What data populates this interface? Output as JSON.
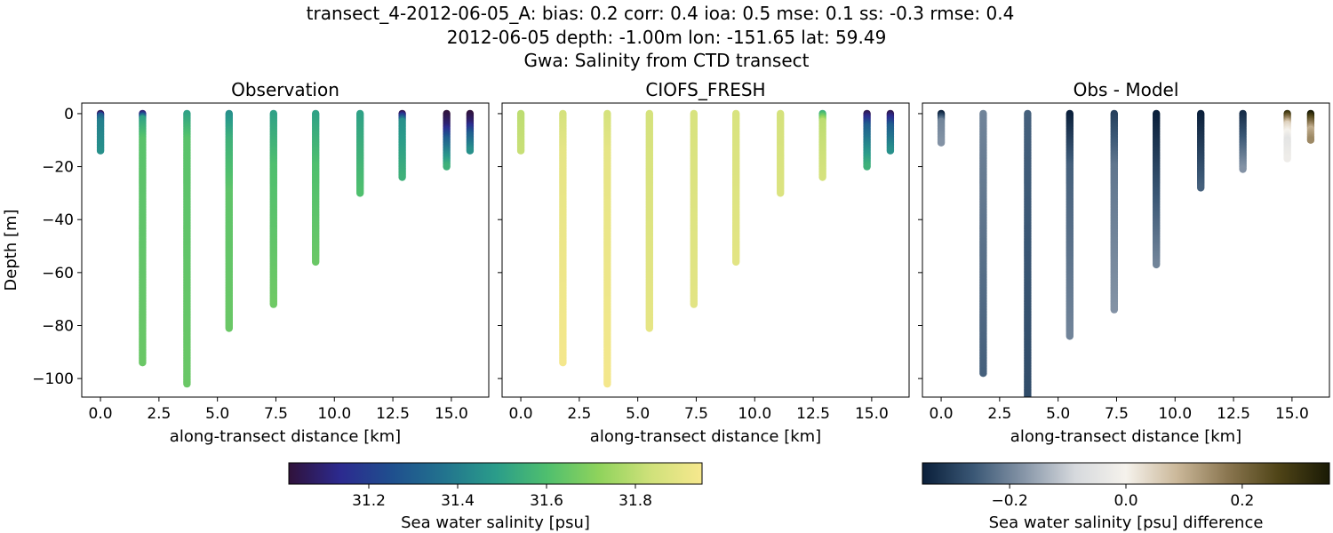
{
  "figure": {
    "title_lines": [
      "transect_4-2012-06-05_A: bias: 0.2  corr: 0.4  ioa: 0.5  mse: 0.1  ss: -0.3  rmse: 0.4",
      "2012-06-05 depth: -1.00m lon: -151.65 lat: 59.49",
      "Gwa: Salinity from CTD transect"
    ]
  },
  "chart_data": [
    {
      "type": "scatter",
      "panel": "observation",
      "title": "Observation",
      "xlabel": "along-transect distance [km]",
      "ylabel": "Depth [m]",
      "xlim": [
        -0.8,
        16.6
      ],
      "ylim": [
        -107,
        4
      ],
      "xticks": [
        "0.0",
        "2.5",
        "5.0",
        "7.5",
        "10.0",
        "12.5",
        "15.0"
      ],
      "yticks": [
        "0",
        "−20",
        "−40",
        "−60",
        "−80",
        "−100"
      ],
      "colorbar": "salinity",
      "stations": [
        {
          "x": 0.0,
          "min_depth": -14,
          "values": [
            [
              0,
              31.05
            ],
            [
              -1,
              31.3
            ],
            [
              -3,
              31.4
            ],
            [
              -14,
              31.45
            ]
          ]
        },
        {
          "x": 1.8,
          "min_depth": -94,
          "values": [
            [
              0,
              31.1
            ],
            [
              -2,
              31.5
            ],
            [
              -10,
              31.62
            ],
            [
              -94,
              31.65
            ]
          ]
        },
        {
          "x": 3.7,
          "min_depth": -102,
          "values": [
            [
              0,
              31.5
            ],
            [
              -10,
              31.62
            ],
            [
              -102,
              31.65
            ]
          ]
        },
        {
          "x": 5.5,
          "min_depth": -81,
          "values": [
            [
              0,
              31.45
            ],
            [
              -10,
              31.55
            ],
            [
              -30,
              31.63
            ],
            [
              -81,
              31.65
            ]
          ]
        },
        {
          "x": 7.4,
          "min_depth": -72,
          "values": [
            [
              0,
              31.5
            ],
            [
              -20,
              31.6
            ],
            [
              -72,
              31.66
            ]
          ]
        },
        {
          "x": 9.2,
          "min_depth": -56,
          "values": [
            [
              0,
              31.5
            ],
            [
              -20,
              31.6
            ],
            [
              -56,
              31.65
            ]
          ]
        },
        {
          "x": 11.1,
          "min_depth": -30,
          "values": [
            [
              0,
              31.5
            ],
            [
              -30,
              31.6
            ]
          ]
        },
        {
          "x": 12.9,
          "min_depth": -24,
          "values": [
            [
              0,
              31.05
            ],
            [
              -3,
              31.45
            ],
            [
              -24,
              31.55
            ]
          ]
        },
        {
          "x": 14.8,
          "min_depth": -20,
          "values": [
            [
              0,
              31.02
            ],
            [
              -5,
              31.1
            ],
            [
              -10,
              31.3
            ],
            [
              -20,
              31.55
            ]
          ]
        },
        {
          "x": 15.8,
          "min_depth": -14,
          "values": [
            [
              0,
              31.02
            ],
            [
              -4,
              31.1
            ],
            [
              -8,
              31.3
            ],
            [
              -14,
              31.45
            ]
          ]
        }
      ]
    },
    {
      "type": "scatter",
      "panel": "model",
      "title": "CIOFS_FRESH",
      "xlabel": "along-transect distance [km]",
      "ylabel": "",
      "xlim": [
        -0.8,
        16.6
      ],
      "ylim": [
        -107,
        4
      ],
      "xticks": [
        "0.0",
        "2.5",
        "5.0",
        "7.5",
        "10.0",
        "12.5",
        "15.0"
      ],
      "colorbar": "salinity",
      "stations": [
        {
          "x": 0.0,
          "min_depth": -14,
          "values": [
            [
              0,
              31.8
            ],
            [
              -14,
              31.82
            ]
          ]
        },
        {
          "x": 1.8,
          "min_depth": -94,
          "values": [
            [
              0,
              31.85
            ],
            [
              -15,
              31.9
            ],
            [
              -94,
              31.94
            ]
          ]
        },
        {
          "x": 3.7,
          "min_depth": -102,
          "values": [
            [
              0,
              31.85
            ],
            [
              -15,
              31.9
            ],
            [
              -102,
              31.94
            ]
          ]
        },
        {
          "x": 5.5,
          "min_depth": -81,
          "values": [
            [
              0,
              31.85
            ],
            [
              -81,
              31.9
            ]
          ]
        },
        {
          "x": 7.4,
          "min_depth": -72,
          "values": [
            [
              0,
              31.86
            ],
            [
              -72,
              31.89
            ]
          ]
        },
        {
          "x": 9.2,
          "min_depth": -56,
          "values": [
            [
              0,
              31.86
            ],
            [
              -56,
              31.89
            ]
          ]
        },
        {
          "x": 11.1,
          "min_depth": -30,
          "values": [
            [
              0,
              31.85
            ],
            [
              -30,
              31.87
            ]
          ]
        },
        {
          "x": 12.9,
          "min_depth": -24,
          "values": [
            [
              0,
              31.55
            ],
            [
              -3,
              31.8
            ],
            [
              -24,
              31.85
            ]
          ]
        },
        {
          "x": 14.8,
          "min_depth": -20,
          "values": [
            [
              0,
              31.05
            ],
            [
              -5,
              31.3
            ],
            [
              -20,
              31.55
            ]
          ]
        },
        {
          "x": 15.8,
          "min_depth": -14,
          "values": [
            [
              0,
              31.05
            ],
            [
              -5,
              31.3
            ],
            [
              -14,
              31.45
            ]
          ]
        }
      ]
    },
    {
      "type": "scatter",
      "panel": "difference",
      "title": "Obs - Model",
      "xlabel": "along-transect distance [km]",
      "ylabel": "",
      "xlim": [
        -0.8,
        16.6
      ],
      "ylim": [
        -107,
        4
      ],
      "xticks": [
        "0.0",
        "2.5",
        "5.0",
        "7.5",
        "10.0",
        "12.5",
        "15.0"
      ],
      "colorbar": "difference",
      "stations": [
        {
          "x": 0.0,
          "min_depth": -11,
          "values": [
            [
              0,
              -0.35
            ],
            [
              -3,
              -0.2
            ],
            [
              -11,
              -0.18
            ]
          ]
        },
        {
          "x": 1.8,
          "min_depth": -98,
          "values": [
            [
              0,
              -0.2
            ],
            [
              -98,
              -0.25
            ]
          ]
        },
        {
          "x": 3.7,
          "min_depth": -107,
          "values": [
            [
              0,
              -0.25
            ],
            [
              -107,
              -0.28
            ]
          ]
        },
        {
          "x": 5.5,
          "min_depth": -84,
          "values": [
            [
              0,
              -0.35
            ],
            [
              -20,
              -0.25
            ],
            [
              -84,
              -0.2
            ]
          ]
        },
        {
          "x": 7.4,
          "min_depth": -74,
          "values": [
            [
              0,
              -0.3
            ],
            [
              -20,
              -0.22
            ],
            [
              -74,
              -0.18
            ]
          ]
        },
        {
          "x": 9.2,
          "min_depth": -57,
          "values": [
            [
              0,
              -0.35
            ],
            [
              -25,
              -0.28
            ],
            [
              -57,
              -0.2
            ]
          ]
        },
        {
          "x": 11.1,
          "min_depth": -28,
          "values": [
            [
              0,
              -0.35
            ],
            [
              -28,
              -0.25
            ]
          ]
        },
        {
          "x": 12.9,
          "min_depth": -21,
          "values": [
            [
              0,
              -0.33
            ],
            [
              -21,
              -0.18
            ]
          ]
        },
        {
          "x": 14.8,
          "min_depth": -17,
          "values": [
            [
              0,
              0.3
            ],
            [
              -4,
              0.05
            ],
            [
              -10,
              -0.05
            ],
            [
              -17,
              -0.02
            ]
          ]
        },
        {
          "x": 15.8,
          "min_depth": -10,
          "values": [
            [
              0,
              0.35
            ],
            [
              -2,
              0.25
            ],
            [
              -6,
              0.1
            ],
            [
              -10,
              0.15
            ]
          ]
        }
      ]
    }
  ],
  "colorbars": {
    "salinity": {
      "label": "Sea water salinity [psu]",
      "range": [
        31.02,
        31.95
      ],
      "ticks": [
        31.2,
        31.4,
        31.6,
        31.8
      ],
      "tick_labels": [
        "31.2",
        "31.4",
        "31.6",
        "31.8"
      ],
      "stops": [
        "#30123b",
        "#2c2a8f",
        "#1f4f8e",
        "#22738e",
        "#2a9c8a",
        "#4fbf6e",
        "#8fd35c",
        "#cfe17a",
        "#f7e88e"
      ]
    },
    "difference": {
      "label": "Sea water salinity [psu] difference",
      "range": [
        -0.35,
        0.35
      ],
      "ticks": [
        -0.2,
        0.0,
        0.2
      ],
      "tick_labels": [
        "−0.2",
        "0.0",
        "0.2"
      ],
      "stops": [
        "#0a1f3a",
        "#3a5775",
        "#8796a8",
        "#d6d9dd",
        "#f5f2ec",
        "#cbb89a",
        "#8a7650",
        "#4f4417",
        "#1a1a05"
      ]
    }
  }
}
